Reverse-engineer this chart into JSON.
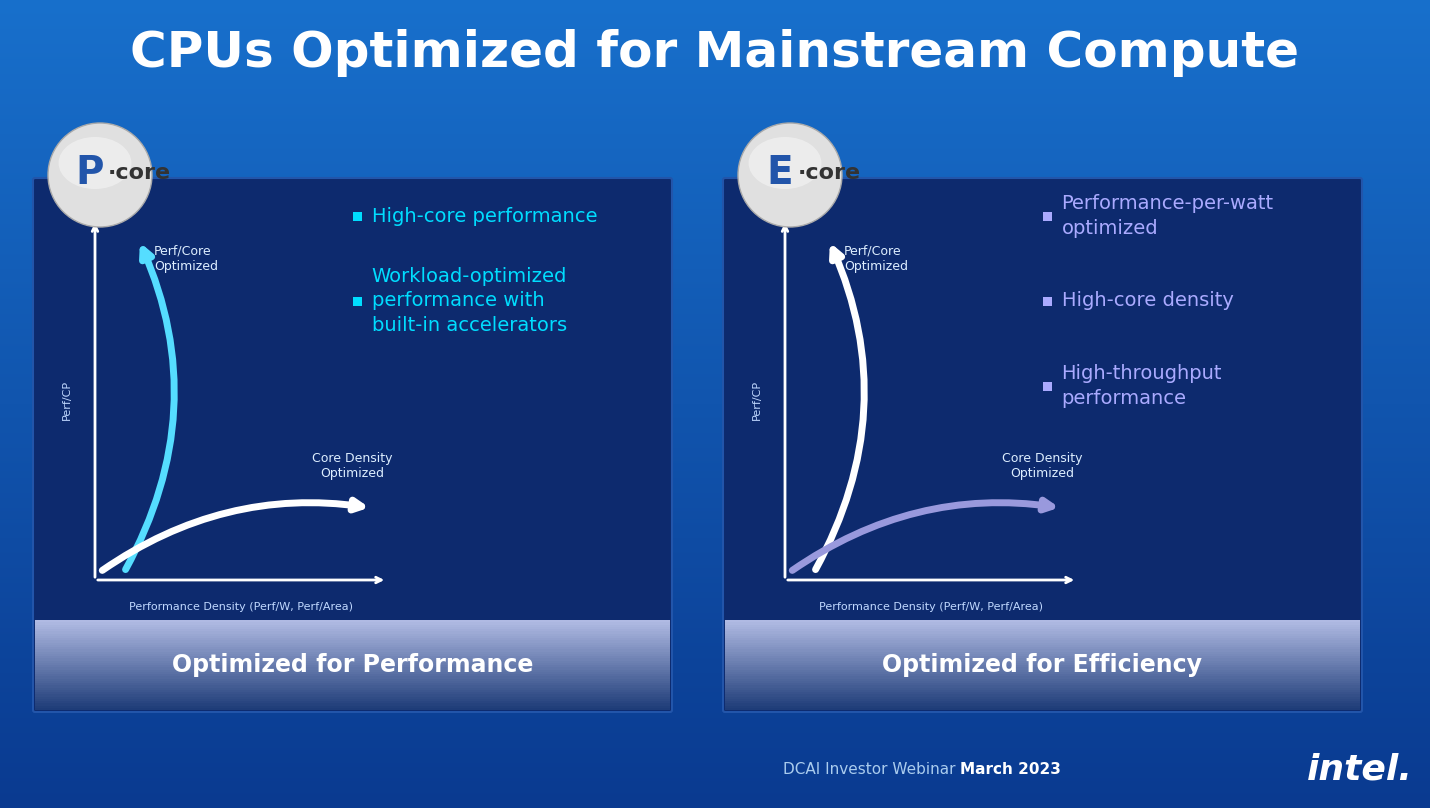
{
  "title": "CPUs Optimized for Mainstream Compute",
  "title_color": "#FFFFFF",
  "title_fontsize": 36,
  "bg_top": "#1870CC",
  "bg_bottom": "#0A3A90",
  "panel_bg_color": "#0D2A6E",
  "panel_border_color": "#2255AA",
  "footer_text": "DCAI Investor Webinar ",
  "footer_highlight": "March 2023",
  "left_panel": {
    "badge_letter": "P",
    "core_text": "·core",
    "subtitle": "Optimized for Performance",
    "subtitle_color": "#FFFFFF",
    "bullet_color": "#00DDFF",
    "bullets": [
      "High-core performance",
      "Workload-optimized\nperformance with\nbuilt-in accelerators"
    ],
    "bullet_fontsize": 14,
    "axis_color": "#FFFFFF",
    "xlabel": "Performance Density (Perf/W, Perf/Area)",
    "xlabel_color": "#C0D8FF",
    "ylabel": "Perf/CP",
    "ylabel_color": "#C0D8FF",
    "arrow1_label": "Perf/Core\nOptimized",
    "arrow1_color": "#55DDFF",
    "arrow2_label": "Core Density\nOptimized",
    "arrow2_color": "#FFFFFF"
  },
  "right_panel": {
    "badge_letter": "E",
    "core_text": "·core",
    "subtitle": "Optimized for Efficiency",
    "subtitle_color": "#FFFFFF",
    "bullet_color": "#AAAAFF",
    "bullets": [
      "Performance-per-watt\noptimized",
      "High-core density",
      "High-throughput\nperformance"
    ],
    "bullet_fontsize": 14,
    "axis_color": "#FFFFFF",
    "xlabel": "Performance Density (Perf/W, Perf/Area)",
    "xlabel_color": "#C0D8FF",
    "ylabel": "Perf/CP",
    "ylabel_color": "#C0D8FF",
    "arrow1_label": "Perf/Core\nOptimized",
    "arrow1_color": "#FFFFFF",
    "arrow2_label": "Core Density\nOptimized",
    "arrow2_color": "#9999DD"
  }
}
